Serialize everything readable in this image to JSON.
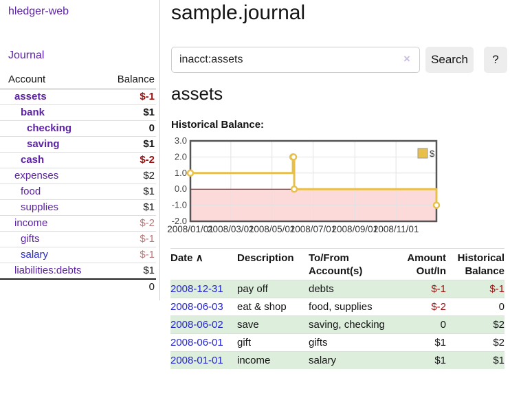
{
  "colors": {
    "link_purple": "#5c21a5",
    "link_blue": "#2525d0",
    "negative_strong": "#9e0e0e",
    "negative_muted": "#b97878",
    "row_highlight_green": "#ddeedd",
    "series_gold": "#e8c049"
  },
  "sidebar": {
    "app_title": "hledger-web",
    "journal_link": "Journal",
    "accounts": {
      "headers": [
        "Account",
        "Balance"
      ],
      "rows": [
        {
          "name": "assets",
          "depth": 1,
          "bold": true,
          "link_class": "purple",
          "balance": "$-1",
          "balance_class": "bal-neg-strong"
        },
        {
          "name": "bank",
          "depth": 2,
          "bold": true,
          "link_class": "purple",
          "balance": "$1",
          "balance_class": "bal-pos"
        },
        {
          "name": "checking",
          "depth": 3,
          "bold": true,
          "link_class": "purple",
          "balance": "0",
          "balance_class": "bal-pos"
        },
        {
          "name": "saving",
          "depth": 3,
          "bold": true,
          "link_class": "purple",
          "balance": "$1",
          "balance_class": "bal-pos"
        },
        {
          "name": "cash",
          "depth": 2,
          "bold": true,
          "link_class": "purple",
          "balance": "$-2",
          "balance_class": "bal-neg-strong"
        },
        {
          "name": "expenses",
          "depth": 1,
          "bold": false,
          "link_class": "purple",
          "balance": "$2",
          "balance_class": "bal-pos"
        },
        {
          "name": "food",
          "depth": 2,
          "bold": false,
          "link_class": "purple",
          "balance": "$1",
          "balance_class": "bal-pos"
        },
        {
          "name": "supplies",
          "depth": 2,
          "bold": false,
          "link_class": "purple",
          "balance": "$1",
          "balance_class": "bal-pos"
        },
        {
          "name": "income",
          "depth": 1,
          "bold": false,
          "link_class": "purple",
          "balance": "$-2",
          "balance_class": "bal-neg-muted"
        },
        {
          "name": "gifts",
          "depth": 2,
          "bold": false,
          "link_class": "purple",
          "balance": "$-1",
          "balance_class": "bal-neg-muted"
        },
        {
          "name": "salary",
          "depth": 2,
          "bold": false,
          "link_class": "blue",
          "balance": "$-1",
          "balance_class": "bal-neg-muted"
        },
        {
          "name": "liabilities:debts",
          "depth": 1,
          "bold": false,
          "link_class": "purple",
          "balance": "$1",
          "balance_class": "bal-pos"
        }
      ],
      "total": "0"
    }
  },
  "main": {
    "title": "sample.journal",
    "search": {
      "value": "inacct:assets",
      "clear_icon": "×",
      "search_button": "Search",
      "help_button": "?"
    },
    "account_heading": "assets",
    "chart_heading": "Historical Balance:"
  },
  "chart_data": {
    "type": "line",
    "step": true,
    "title": "Historical Balance",
    "series": [
      {
        "name": "$",
        "color": "#e8c049",
        "points": [
          [
            "2008-01-01",
            1
          ],
          [
            "2008-06-01",
            2
          ],
          [
            "2008-06-02",
            2
          ],
          [
            "2008-06-03",
            0
          ],
          [
            "2008-12-31",
            -1
          ]
        ]
      }
    ],
    "ylim": [
      -2,
      3
    ],
    "y_ticks": [
      "3.0",
      "2.0",
      "1.0",
      "0.0",
      "-1.0",
      "-2.0"
    ],
    "x_ticks": [
      "2008/01/01",
      "2008/03/01",
      "2008/05/01",
      "2008/07/01",
      "2008/09/01",
      "2008/11/01"
    ],
    "grid": true,
    "negative_region_color": "#fcdada",
    "zero_line_color": "#7f0000",
    "legend": {
      "label": "$",
      "position": "top-right"
    }
  },
  "register": {
    "headers": [
      {
        "label": "Date",
        "sort_indicator": "∧"
      },
      {
        "label": "Description"
      },
      {
        "label": "To/From Account(s)"
      },
      {
        "label": "Amount Out/In",
        "align": "right"
      },
      {
        "label": "Historical Balance",
        "align": "right"
      }
    ],
    "rows": [
      {
        "date": "2008-12-31",
        "description": "pay off",
        "accounts": "debts",
        "amount": "$-1",
        "amount_neg": true,
        "balance": "$-1",
        "balance_neg": true,
        "highlight": true
      },
      {
        "date": "2008-06-03",
        "description": "eat & shop",
        "accounts": "food, supplies",
        "amount": "$-2",
        "amount_neg": true,
        "balance": "0",
        "balance_neg": false,
        "highlight": false
      },
      {
        "date": "2008-06-02",
        "description": "save",
        "accounts": "saving, checking",
        "amount": "0",
        "amount_neg": false,
        "balance": "$2",
        "balance_neg": false,
        "highlight": true
      },
      {
        "date": "2008-06-01",
        "description": "gift",
        "accounts": "gifts",
        "amount": "$1",
        "amount_neg": false,
        "balance": "$2",
        "balance_neg": false,
        "highlight": false
      },
      {
        "date": "2008-01-01",
        "description": "income",
        "accounts": "salary",
        "amount": "$1",
        "amount_neg": false,
        "balance": "$1",
        "balance_neg": false,
        "highlight": true
      }
    ]
  }
}
